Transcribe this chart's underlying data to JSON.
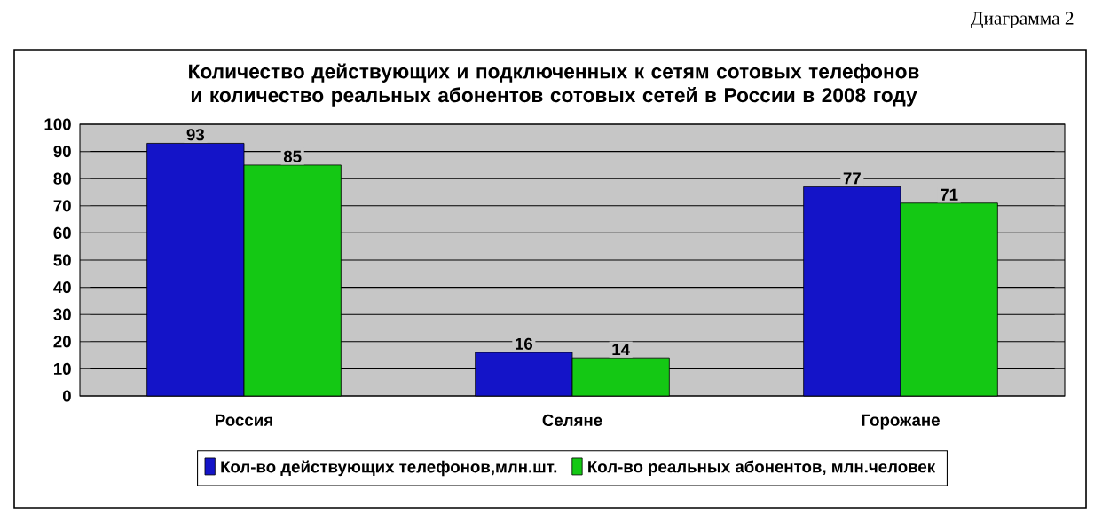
{
  "chart_data": {
    "type": "bar",
    "title": "Количество действующих и подключенных к сетям сотовых телефонов и количество реальных абонентов сотовых сетей в России в 2008 году",
    "annotations": [
      "Диаграмма 2"
    ],
    "categories": [
      "Россия",
      "Селяне",
      "Горожане"
    ],
    "series": [
      {
        "name": "Кол-во действующих телефонов,млн.шт.",
        "color": "#1414c8",
        "values": [
          93,
          16,
          77
        ]
      },
      {
        "name": "Кол-во реальных абонентов, млн.человек",
        "color": "#14c814",
        "values": [
          85,
          14,
          71
        ]
      }
    ],
    "ylim": [
      0,
      100
    ],
    "yticks": [
      0,
      10,
      20,
      30,
      40,
      50,
      60,
      70,
      80,
      90,
      100
    ],
    "grid": "y",
    "data_labels": true,
    "legend": "bottom"
  }
}
